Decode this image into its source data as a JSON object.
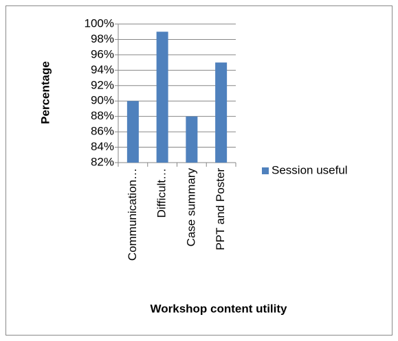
{
  "chart_data": {
    "type": "bar",
    "categories": [
      "Communication…",
      "Difficult…",
      "Case summary",
      "PPT and Poster"
    ],
    "series": [
      {
        "name": "Session useful",
        "color": "#4f81bd",
        "values": [
          90,
          99,
          88,
          95
        ]
      }
    ],
    "ylim": [
      82,
      100
    ],
    "yticks": [
      {
        "value": 82,
        "label": "82%"
      },
      {
        "value": 84,
        "label": "84%"
      },
      {
        "value": 86,
        "label": "86%"
      },
      {
        "value": 88,
        "label": "88%"
      },
      {
        "value": 90,
        "label": "90%"
      },
      {
        "value": 92,
        "label": "92%"
      },
      {
        "value": 94,
        "label": "94%"
      },
      {
        "value": 96,
        "label": "96%"
      },
      {
        "value": 98,
        "label": "98%"
      },
      {
        "value": 100,
        "label": "100%"
      }
    ],
    "y_label": "Percentage",
    "x_label": "Workshop content utility",
    "grid": true,
    "legend": "right"
  }
}
